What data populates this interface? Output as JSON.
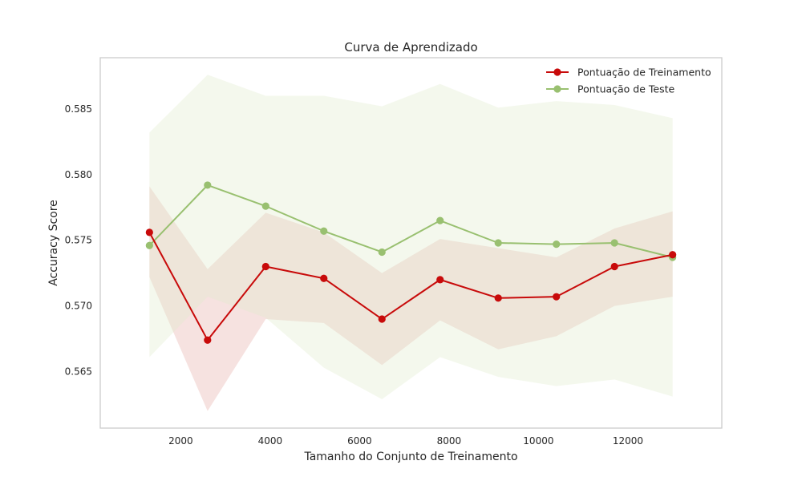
{
  "chart_data": {
    "type": "line",
    "title": "Curva de Aprendizado",
    "xlabel": "Tamanho do Conjunto de Treinamento",
    "ylabel": "Accuracy Score",
    "xlim": [
      200,
      14100
    ],
    "ylim": [
      0.5607,
      0.5889
    ],
    "xticks": [
      2000,
      4000,
      6000,
      8000,
      10000,
      12000
    ],
    "yticks": [
      0.565,
      0.57,
      0.575,
      0.58,
      0.585
    ],
    "xtick_labels": [
      "2000",
      "4000",
      "6000",
      "8000",
      "10000",
      "12000"
    ],
    "ytick_labels": [
      "0.565",
      "0.570",
      "0.575",
      "0.580",
      "0.585"
    ],
    "grid": false,
    "legend_position": "top-right",
    "x": [
      1300,
      2600,
      3900,
      5200,
      6500,
      7800,
      9100,
      10400,
      11700,
      13000
    ],
    "series": [
      {
        "name": "Pontuação de Treinamento",
        "color": "#c80a0a",
        "band_color": "#e8b4ae",
        "values": [
          0.5756,
          0.5674,
          0.573,
          0.5721,
          0.569,
          0.572,
          0.5706,
          0.5707,
          0.573,
          0.5739
        ],
        "upper": [
          0.5791,
          0.5728,
          0.5771,
          0.5756,
          0.5725,
          0.5751,
          0.5744,
          0.5737,
          0.5759,
          0.5772
        ],
        "lower": [
          0.5722,
          0.562,
          0.569,
          0.5687,
          0.5655,
          0.5689,
          0.5667,
          0.5677,
          0.57,
          0.5707
        ]
      },
      {
        "name": "Pontuação de Teste",
        "color": "#99c070",
        "band_color": "#dfeacc",
        "values": [
          0.5746,
          0.5792,
          0.5776,
          0.5757,
          0.5741,
          0.5765,
          0.5748,
          0.5747,
          0.5748,
          0.5737
        ],
        "upper": [
          0.5832,
          0.5876,
          0.586,
          0.586,
          0.5852,
          0.5869,
          0.5851,
          0.5856,
          0.5853,
          0.5843
        ],
        "lower": [
          0.5661,
          0.5707,
          0.5691,
          0.5653,
          0.5629,
          0.5661,
          0.5646,
          0.5639,
          0.5644,
          0.5631
        ]
      }
    ]
  }
}
